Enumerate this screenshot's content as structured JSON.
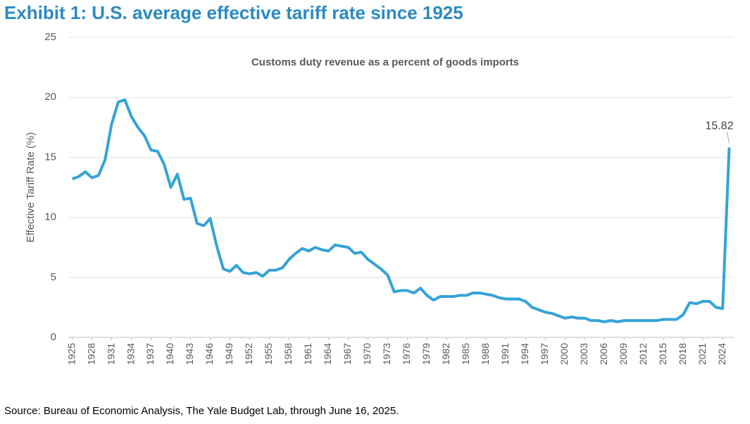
{
  "chart_data": {
    "type": "line",
    "title": "Exhibit 1: U.S. average effective tariff rate since 1925",
    "subtitle": "Customs duty revenue as a percent of goods imports",
    "y_label": "Effective Tariff Rate (%)",
    "source": "Source: Bureau of Economic Analysis, The Yale Budget Lab, through June 16, 2025.",
    "annotation": "15.82",
    "x": [
      1925,
      1926,
      1927,
      1928,
      1929,
      1930,
      1931,
      1932,
      1933,
      1934,
      1935,
      1936,
      1937,
      1938,
      1939,
      1940,
      1941,
      1942,
      1943,
      1944,
      1945,
      1946,
      1947,
      1948,
      1949,
      1950,
      1951,
      1952,
      1953,
      1954,
      1955,
      1956,
      1957,
      1958,
      1959,
      1960,
      1961,
      1962,
      1963,
      1964,
      1965,
      1966,
      1967,
      1968,
      1969,
      1970,
      1971,
      1972,
      1973,
      1974,
      1975,
      1976,
      1977,
      1978,
      1979,
      1980,
      1981,
      1982,
      1983,
      1984,
      1985,
      1986,
      1987,
      1988,
      1989,
      1990,
      1991,
      1992,
      1993,
      1994,
      1995,
      1996,
      1997,
      1998,
      1999,
      2000,
      2001,
      2002,
      2003,
      2004,
      2005,
      2006,
      2007,
      2008,
      2009,
      2010,
      2011,
      2012,
      2013,
      2014,
      2015,
      2016,
      2017,
      2018,
      2019,
      2020,
      2021,
      2022,
      2023,
      2024,
      2025
    ],
    "series": [
      {
        "name": "Effective Tariff Rate",
        "color": "#35a3d8",
        "values": [
          13.2,
          13.4,
          13.8,
          13.3,
          13.5,
          14.8,
          17.8,
          19.6,
          19.8,
          18.4,
          17.5,
          16.8,
          15.6,
          15.5,
          14.4,
          12.5,
          13.6,
          11.5,
          11.6,
          9.5,
          9.3,
          9.9,
          7.6,
          5.7,
          5.5,
          6.0,
          5.4,
          5.3,
          5.4,
          5.1,
          5.6,
          5.6,
          5.8,
          6.5,
          7.0,
          7.4,
          7.2,
          7.5,
          7.3,
          7.2,
          7.7,
          7.6,
          7.5,
          7.0,
          7.1,
          6.5,
          6.1,
          5.7,
          5.2,
          3.8,
          3.9,
          3.9,
          3.7,
          4.1,
          3.5,
          3.1,
          3.4,
          3.4,
          3.4,
          3.5,
          3.5,
          3.7,
          3.7,
          3.6,
          3.5,
          3.3,
          3.2,
          3.2,
          3.2,
          3.0,
          2.5,
          2.3,
          2.1,
          2.0,
          1.8,
          1.6,
          1.7,
          1.6,
          1.6,
          1.4,
          1.4,
          1.3,
          1.4,
          1.3,
          1.4,
          1.4,
          1.4,
          1.4,
          1.4,
          1.4,
          1.5,
          1.5,
          1.5,
          1.9,
          2.9,
          2.8,
          3.0,
          3.0,
          2.5,
          2.4,
          15.82
        ]
      }
    ],
    "xlim": [
      1924.4,
      2025.7
    ],
    "xticks": [
      1925,
      1928,
      1931,
      1934,
      1937,
      1940,
      1943,
      1946,
      1949,
      1952,
      1955,
      1958,
      1961,
      1964,
      1967,
      1970,
      1973,
      1976,
      1979,
      1982,
      1985,
      1988,
      1991,
      1994,
      1997,
      2000,
      2003,
      2006,
      2009,
      2012,
      2015,
      2018,
      2021,
      2024
    ],
    "ylim": [
      0,
      25
    ],
    "yticks": [
      0,
      5,
      10,
      15,
      20,
      25
    ],
    "grid": true
  }
}
